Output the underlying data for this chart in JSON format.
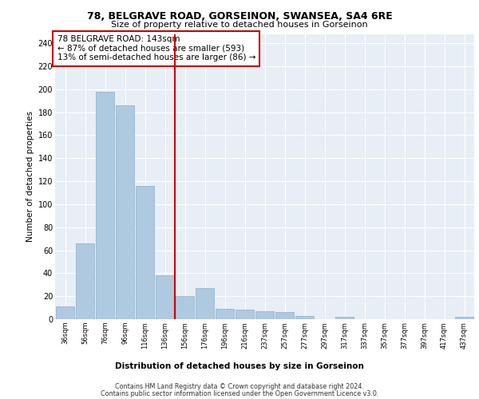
{
  "title_line1": "78, BELGRAVE ROAD, GORSEINON, SWANSEA, SA4 6RE",
  "title_line2": "Size of property relative to detached houses in Gorseinon",
  "xlabel": "Distribution of detached houses by size in Gorseinon",
  "ylabel": "Number of detached properties",
  "bar_color": "#afc9e1",
  "bar_edge_color": "#8aafc8",
  "categories": [
    "36sqm",
    "56sqm",
    "76sqm",
    "96sqm",
    "116sqm",
    "136sqm",
    "156sqm",
    "176sqm",
    "196sqm",
    "216sqm",
    "237sqm",
    "257sqm",
    "277sqm",
    "297sqm",
    "317sqm",
    "337sqm",
    "357sqm",
    "377sqm",
    "397sqm",
    "417sqm",
    "437sqm"
  ],
  "values": [
    11,
    66,
    198,
    186,
    116,
    38,
    20,
    27,
    9,
    8,
    7,
    6,
    3,
    0,
    2,
    0,
    0,
    0,
    0,
    0,
    2
  ],
  "vline_x": 5.5,
  "vline_color": "#cc0000",
  "annotation_line1": "78 BELGRAVE ROAD: 143sqm",
  "annotation_line2": "← 87% of detached houses are smaller (593)",
  "annotation_line3": "13% of semi-detached houses are larger (86) →",
  "annotation_box_color": "#ffffff",
  "annotation_box_edge": "#cc0000",
  "yticks": [
    0,
    20,
    40,
    60,
    80,
    100,
    120,
    140,
    160,
    180,
    200,
    220,
    240
  ],
  "ylim": [
    0,
    248
  ],
  "background_color": "#e8eef5",
  "footer_line1": "Contains HM Land Registry data © Crown copyright and database right 2024.",
  "footer_line2": "Contains public sector information licensed under the Open Government Licence v3.0."
}
